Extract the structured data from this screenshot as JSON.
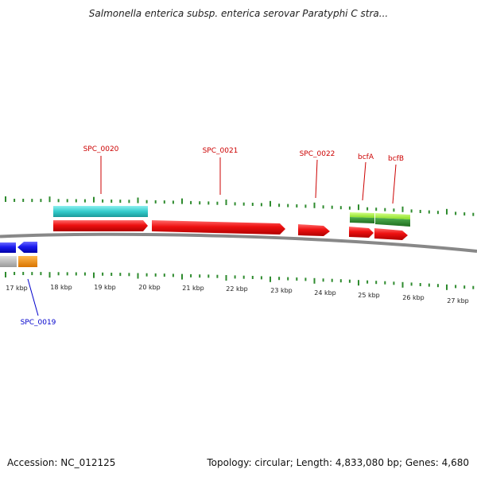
{
  "title": "Salmonella enterica subsp. enterica serovar Paratyphi C stra...",
  "accession_text": "Accession: NC_012125",
  "summary_text": "Topology: circular; Length: 4,833,080 bp; Genes: 4,680",
  "colors": {
    "forward_gene": "#ee1111",
    "reverse_gene": "#1a1aee",
    "label_forward": "#cc0000",
    "label_reverse": "#0000cc",
    "cyan_feature": "#33cccc",
    "light_green_feature": "#99ee33",
    "dark_green_feature": "#2e8b2e",
    "grey_feature": "#bbbbbb",
    "orange_feature": "#f08c00",
    "tick": "#2e8b2e",
    "backbone": "#888888"
  },
  "kbp_labels": [
    "17 kbp",
    "18 kbp",
    "19 kbp",
    "20 kbp",
    "21 kbp",
    "22 kbp",
    "23 kbp",
    "24 kbp",
    "25 kbp",
    "26 kbp",
    "27 kbp"
  ],
  "gene_labels": [
    {
      "name": "SPC_0019",
      "strand": "reverse"
    },
    {
      "name": "SPC_0020",
      "strand": "forward"
    },
    {
      "name": "SPC_0021",
      "strand": "forward"
    },
    {
      "name": "SPC_0022",
      "strand": "forward"
    },
    {
      "name": "bcfA",
      "strand": "forward"
    },
    {
      "name": "bcfB",
      "strand": "forward"
    }
  ]
}
